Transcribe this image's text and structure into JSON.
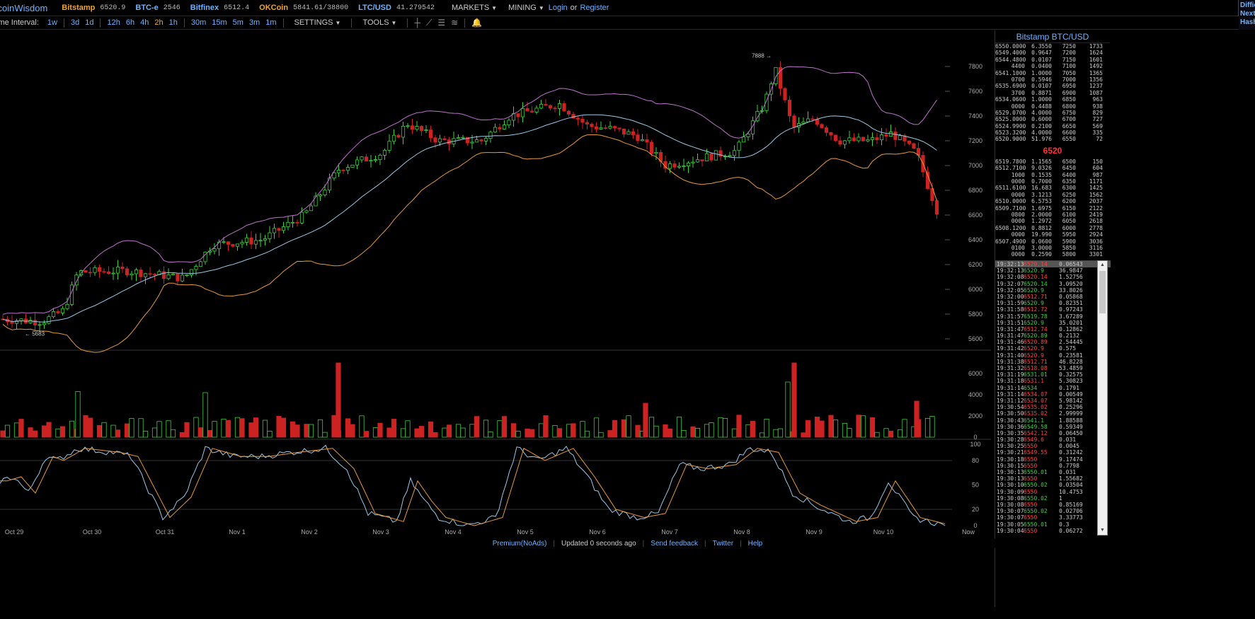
{
  "topbar": {
    "logo": "itcoinWisdom",
    "tickers": [
      {
        "name": "Bitstamp",
        "value": "6520.9",
        "color": "orange"
      },
      {
        "name": "BTC-e",
        "value": "2546",
        "color": "blue"
      },
      {
        "name": "Bitfinex",
        "value": "6512.4",
        "color": "blue"
      },
      {
        "name": "OKCoin",
        "value": "5841.61/38800",
        "color": "orange"
      },
      {
        "name": "LTC/USD",
        "value": "41.279542",
        "color": "blue"
      }
    ],
    "markets_label": "MARKETS",
    "mining_label": "MINING",
    "login_label": "Login",
    "or_label": "or",
    "register_label": "Register",
    "right_lines": [
      "Diffic",
      "Next:",
      "Hash"
    ]
  },
  "interval_bar": {
    "label": "ime Interval:",
    "group1": [
      "1w",
      "3d",
      "1d"
    ],
    "group2": [
      "12h",
      "6h",
      "4h",
      "2h",
      "1h"
    ],
    "group3": [
      "30m",
      "15m",
      "5m",
      "3m",
      "1m"
    ],
    "active": "2h",
    "settings_label": "SETTINGS",
    "tools_label": "TOOLS"
  },
  "chart_data": {
    "type": "candlestick",
    "x_labels": [
      "Oct 29",
      "Oct 30",
      "Oct 31",
      "Nov 1",
      "Nov 2",
      "Nov 3",
      "Nov 4",
      "Nov 5",
      "Nov 6",
      "Nov 7",
      "Nov 8",
      "Nov 9",
      "Nov 10",
      "Now"
    ],
    "price_ticks": [
      7800,
      7600,
      7400,
      7200,
      7000,
      6800,
      6600,
      6400,
      6200,
      6000,
      5800,
      5600
    ],
    "price_range": [
      5520,
      7920
    ],
    "high_marker": "7888",
    "low_marker": "5683",
    "volume_ticks": [
      6000,
      4000,
      2000,
      0
    ],
    "volume_range": [
      0,
      7000
    ],
    "stoch_ticks": [
      100,
      80,
      50,
      20,
      0
    ],
    "stoch_range": [
      0,
      100
    ]
  },
  "orderbook": {
    "title": "Bitstamp BTC/USD",
    "asks": [
      [
        "6550.0000",
        "6.3550",
        "7250",
        "1733"
      ],
      [
        "6549.4000",
        "0.9647",
        "7200",
        "1624"
      ],
      [
        "6544.4800",
        "0.0107",
        "7150",
        "1601"
      ],
      [
        "4400",
        "0.0400",
        "7100",
        "1492"
      ],
      [
        "6541.1000",
        "1.0000",
        "7050",
        "1365"
      ],
      [
        "0700",
        "0.5946",
        "7000",
        "1356"
      ],
      [
        "6535.6900",
        "0.0107",
        "6950",
        "1237"
      ],
      [
        "3700",
        "0.8871",
        "6900",
        "1087"
      ],
      [
        "6534.0600",
        "1.0000",
        "6850",
        "963"
      ],
      [
        "0000",
        "0.4488",
        "6800",
        "938"
      ],
      [
        "6529.0700",
        "4.0000",
        "6750",
        "829"
      ],
      [
        "6525.0000",
        "0.6000",
        "6700",
        "727"
      ],
      [
        "6524.9900",
        "0.2100",
        "6650",
        "569"
      ],
      [
        "6523.3200",
        "4.0000",
        "6600",
        "335"
      ],
      [
        "6520.9000",
        "51.976",
        "6550",
        "72"
      ]
    ],
    "last_price": "6520",
    "bids": [
      [
        "6519.7800",
        "1.1565",
        "6500",
        "150"
      ],
      [
        "6512.7100",
        "9.0326",
        "6450",
        "604"
      ],
      [
        "1000",
        "0.1535",
        "6400",
        "987"
      ],
      [
        "0000",
        "0.7000",
        "6350",
        "1171"
      ],
      [
        "6511.6100",
        "16.683",
        "6300",
        "1425"
      ],
      [
        "0000",
        "3.1213",
        "6250",
        "1562"
      ],
      [
        "6510.0000",
        "6.5753",
        "6200",
        "2037"
      ],
      [
        "6509.7100",
        "1.6975",
        "6150",
        "2122"
      ],
      [
        "0800",
        "2.0000",
        "6100",
        "2419"
      ],
      [
        "0000",
        "1.2972",
        "6050",
        "2618"
      ],
      [
        "6508.1200",
        "0.8812",
        "6000",
        "2778"
      ],
      [
        "0000",
        "19.990",
        "5950",
        "2924"
      ],
      [
        "6507.4900",
        "0.0600",
        "5900",
        "3036"
      ],
      [
        "0100",
        "3.0000",
        "5850",
        "3116"
      ],
      [
        "0000",
        "0.2590",
        "5800",
        "3301"
      ]
    ]
  },
  "trades": [
    [
      "19:32:13",
      "6520.14",
      "0.06543",
      "down"
    ],
    [
      "19:32:13",
      "6520.9",
      "36.9847",
      "up"
    ],
    [
      "19:32:08",
      "6520.14",
      "1.52756",
      "down"
    ],
    [
      "19:32:07",
      "6520.14",
      "3.09520",
      "up"
    ],
    [
      "19:32:05",
      "6520.9",
      "33.8026",
      "up"
    ],
    [
      "19:32:00",
      "6512.71",
      "0.05868",
      "down"
    ],
    [
      "19:31:59",
      "6520.9",
      "0.82351",
      "up"
    ],
    [
      "19:31:58",
      "6512.72",
      "0.97243",
      "down"
    ],
    [
      "19:31:57",
      "6519.78",
      "3.67289",
      "up"
    ],
    [
      "19:31:51",
      "6520.9",
      "35.0201",
      "up"
    ],
    [
      "19:31:47",
      "6512.74",
      "0.12862",
      "down"
    ],
    [
      "19:31:47",
      "6520.89",
      "0.2132",
      "up"
    ],
    [
      "19:31:46",
      "6520.89",
      "2.54445",
      "down"
    ],
    [
      "19:31:42",
      "6520.9",
      "0.575",
      "down"
    ],
    [
      "19:31:40",
      "6520.9",
      "0.23581",
      "down"
    ],
    [
      "19:31:38",
      "6512.71",
      "46.8228",
      "down"
    ],
    [
      "19:31:32",
      "6518.08",
      "53.4859",
      "down"
    ],
    [
      "19:31:19",
      "6531.01",
      "0.32575",
      "up"
    ],
    [
      "19:31:18",
      "6531.1",
      "5.30823",
      "down"
    ],
    [
      "19:31:14",
      "6534",
      "0.1791",
      "up"
    ],
    [
      "19:31:14",
      "6534.07",
      "0.00549",
      "down"
    ],
    [
      "19:31:12",
      "6534.07",
      "5.98142",
      "down"
    ],
    [
      "19:30:54",
      "6535.02",
      "0.25296",
      "down"
    ],
    [
      "19:30:50",
      "6535.02",
      "2.99999",
      "down"
    ],
    [
      "19:30:43",
      "6541.1",
      "1.88588",
      "up"
    ],
    [
      "19:30:36",
      "6549.58",
      "0.59349",
      "up"
    ],
    [
      "19:30:35",
      "6542.12",
      "0.06450",
      "down"
    ],
    [
      "19:30:28",
      "6549.6",
      "0.031",
      "down"
    ],
    [
      "19:30:25",
      "6550",
      "0.0045",
      "down"
    ],
    [
      "19:30:21",
      "6549.55",
      "0.31242",
      "down"
    ],
    [
      "19:30:18",
      "6550",
      "9.17474",
      "down"
    ],
    [
      "19:30:15",
      "6550",
      "0.7798",
      "down"
    ],
    [
      "19:30:13",
      "6550.01",
      "0.031",
      "up"
    ],
    [
      "19:30:13",
      "6550",
      "1.55682",
      "down"
    ],
    [
      "19:30:10",
      "6550.02",
      "0.03504",
      "up"
    ],
    [
      "19:30:09",
      "6550",
      "10.4753",
      "down"
    ],
    [
      "19:30:08",
      "6550.02",
      "1",
      "up"
    ],
    [
      "19:30:08",
      "6550",
      "0.85169",
      "down"
    ],
    [
      "19:30:07",
      "6550.02",
      "0.02706",
      "up"
    ],
    [
      "19:30:07",
      "6550",
      "3.33773",
      "down"
    ],
    [
      "19:30:05",
      "6550.01",
      "0.3",
      "up"
    ],
    [
      "19:30:04",
      "6550",
      "0.06272",
      "down"
    ]
  ],
  "footer": {
    "premium": "Premium(NoAds)",
    "updated": "Updated 0 seconds ago",
    "feedback": "Send feedback",
    "twitter": "Twitter",
    "help": "Help"
  },
  "colors": {
    "up": "#3ecf3e",
    "down": "#cc2222",
    "bb_upper": "#c070d0",
    "bb_mid": "#9cc8e8",
    "bb_lower": "#e89a3a",
    "accent_blue": "#6fb3ff",
    "accent_orange": "#f0a52d"
  }
}
